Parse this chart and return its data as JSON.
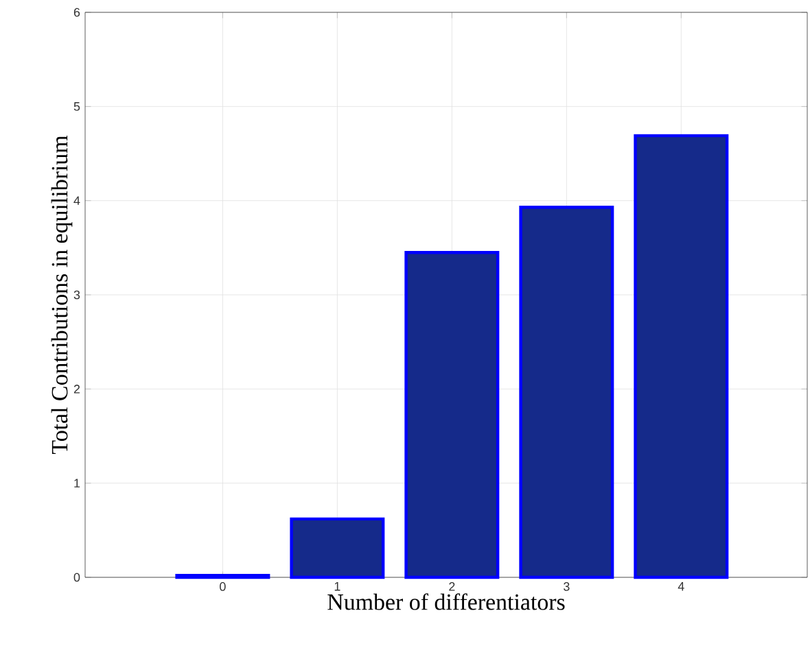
{
  "chart_data": {
    "type": "bar",
    "xlabel": "Number of differentiators",
    "ylabel": "Total Contributions in equilibrium",
    "x": [
      0,
      1,
      2,
      3,
      4
    ],
    "values": [
      0.02,
      0.62,
      3.45,
      3.93,
      4.69
    ],
    "color": "#152a8a",
    "xlim": [
      -1.2,
      5.1
    ],
    "xticks": [
      0,
      1,
      2,
      3,
      4
    ],
    "ylim": [
      0,
      6
    ],
    "yticks": [
      0,
      1,
      2,
      3,
      4,
      5,
      6
    ],
    "grid": true
  }
}
